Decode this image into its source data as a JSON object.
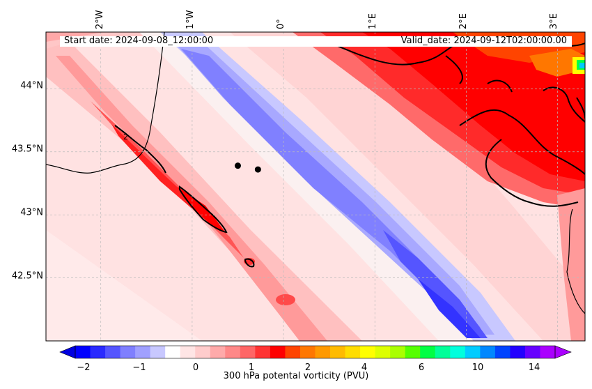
{
  "map": {
    "start_text": "Start date: 2024-09-08_12:00:00",
    "valid_text": "Valid_date: 2024-09-12T02:00:00.00",
    "lon_labels": [
      "2°W",
      "1°W",
      "0°",
      "1°E",
      "2°E",
      "3°E"
    ],
    "lat_labels": [
      "44°N",
      "43.5°N",
      "43°N",
      "42.5°N"
    ],
    "lon_range": [
      -2.6,
      3.3
    ],
    "lat_range": [
      42.0,
      44.45
    ],
    "contour_label": "2",
    "station_markers": [
      {
        "lon": -0.5,
        "lat": 43.39
      },
      {
        "lon": -0.28,
        "lat": 43.36
      }
    ]
  },
  "colorbar": {
    "label": "300 hPa potental vorticity (PVU)",
    "ticks": [
      "−2",
      "−1",
      "0",
      "1",
      "2",
      "4",
      "6",
      "10",
      "14"
    ],
    "colors": [
      "#0000ff",
      "#2a2aff",
      "#5555ff",
      "#7f7fff",
      "#a0a0ff",
      "#c8c8ff",
      "#ffffff",
      "#ffe5e5",
      "#ffcccc",
      "#ffaaaa",
      "#ff8888",
      "#ff6666",
      "#ff3333",
      "#ff0000",
      "#ff4400",
      "#ff7700",
      "#ff9900",
      "#ffbb00",
      "#ffdd00",
      "#ffff00",
      "#ddff00",
      "#aaff00",
      "#55ff00",
      "#00ff44",
      "#00ff99",
      "#00ffdd",
      "#00ccff",
      "#0088ff",
      "#0044ff",
      "#2200ff",
      "#6600ff",
      "#aa00ff"
    ]
  }
}
